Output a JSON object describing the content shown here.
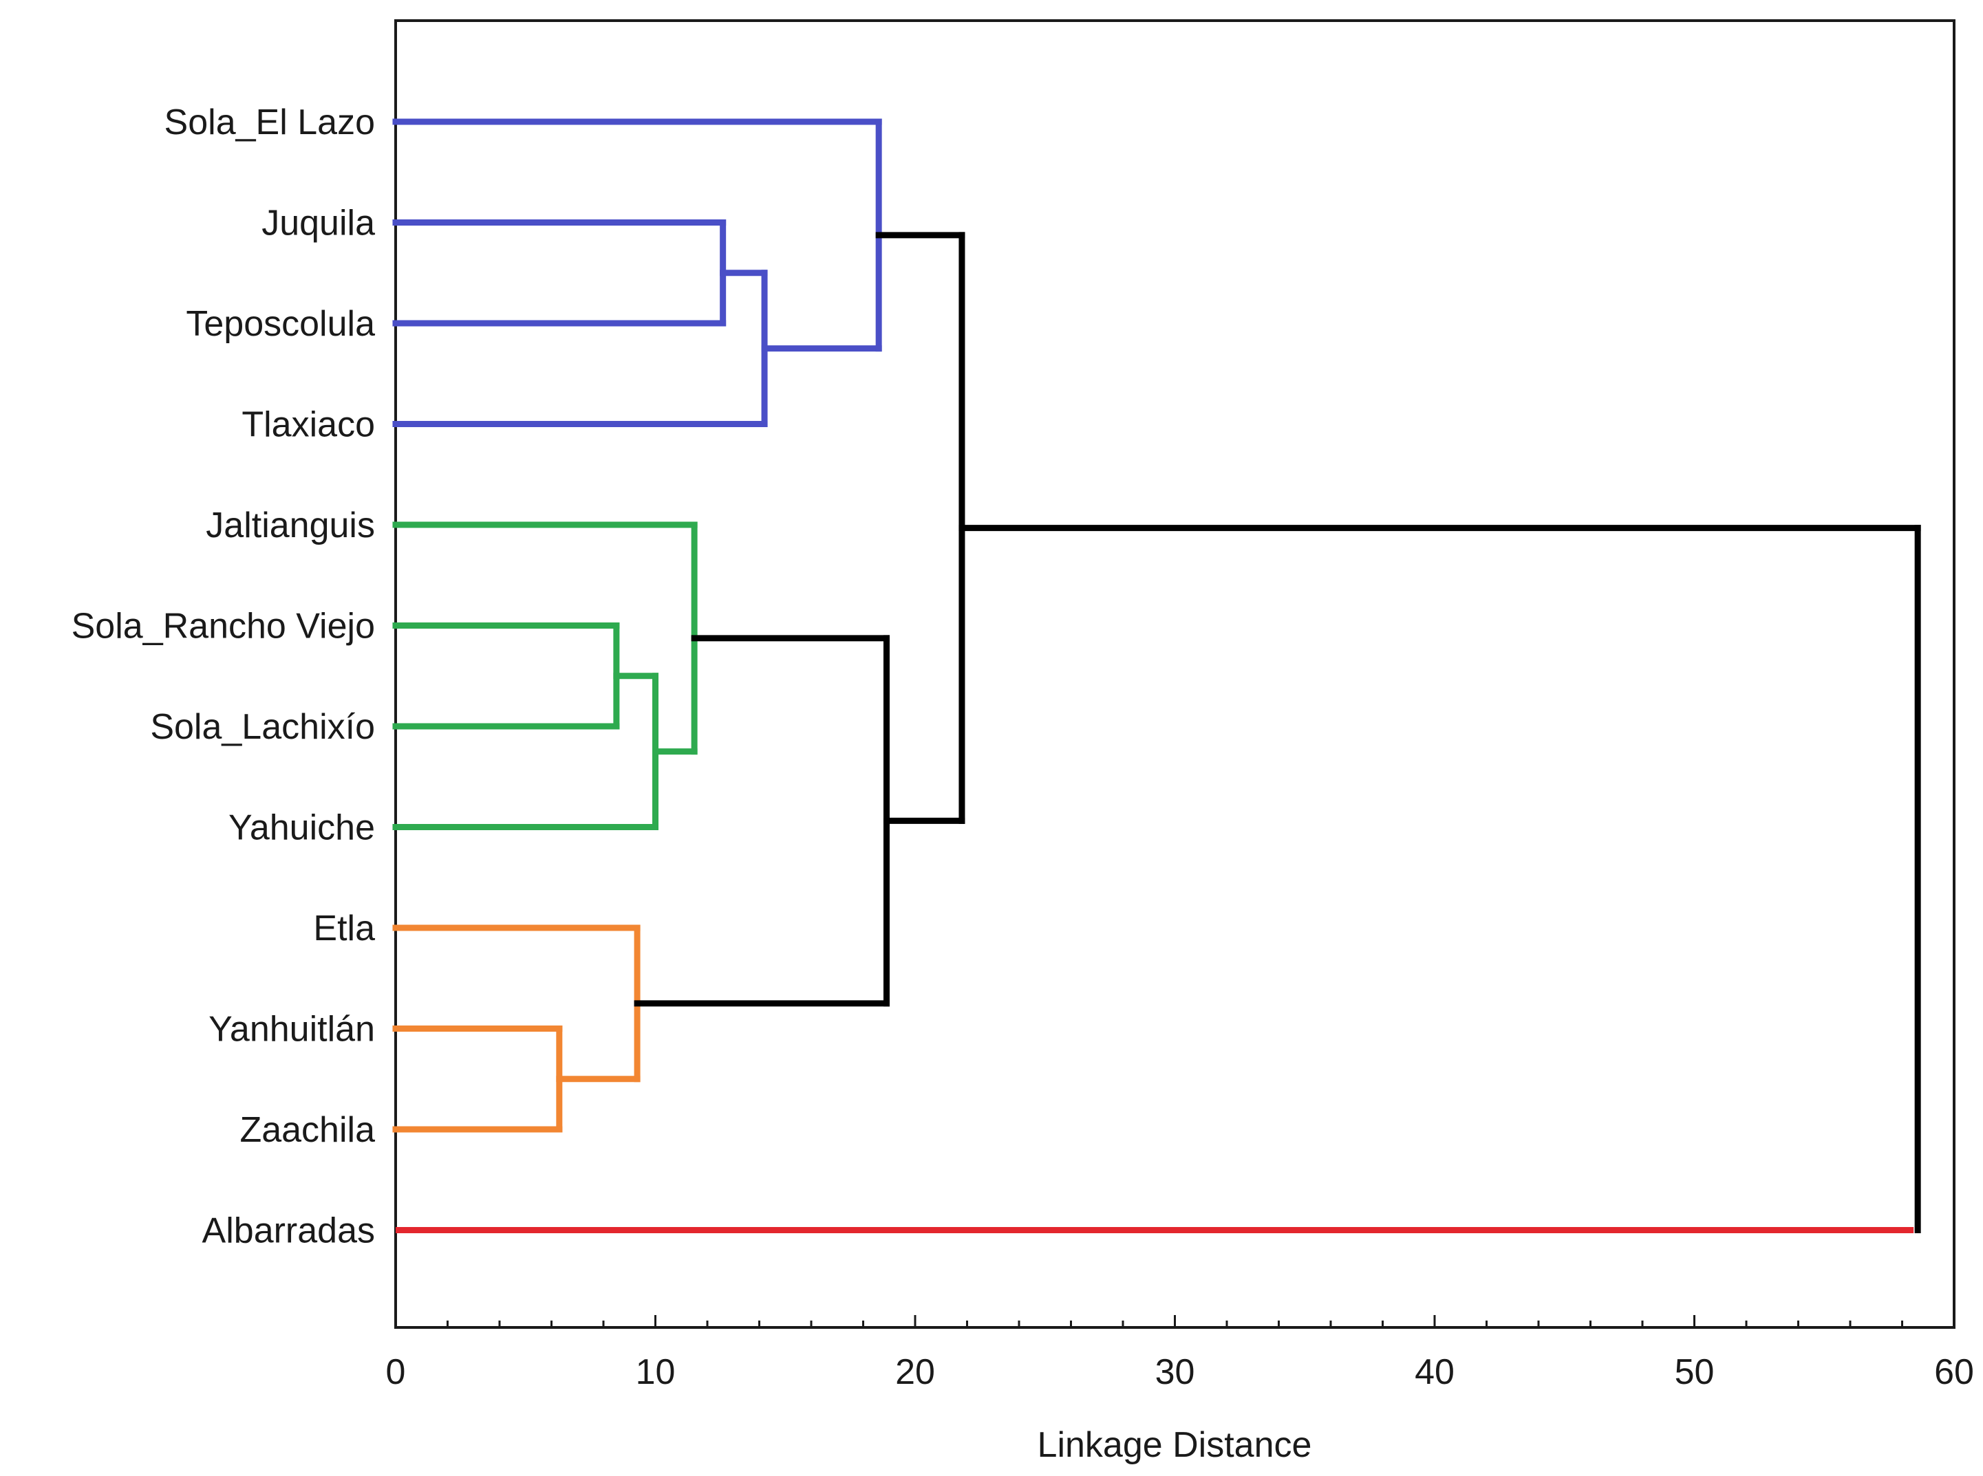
{
  "chart_data": {
    "type": "dendrogram",
    "orientation": "horizontal",
    "xlabel": "Linkage Distance",
    "xlim": [
      0,
      60
    ],
    "xticks": [
      0,
      10,
      20,
      30,
      40,
      50,
      60
    ],
    "xtick_labels": [
      "0",
      "10",
      "20",
      "30",
      "40",
      "50",
      "60"
    ],
    "minor_tick_step": 2,
    "grid": false,
    "leaves": [
      "Sola_El Lazo",
      "Juquila",
      "Teposcolula",
      "Tlaxiaco",
      "Jaltianguis",
      "Sola_Rancho Viejo",
      "Sola_Lachixío",
      "Yahuiche",
      "Etla",
      "Yanhuitlán",
      "Zaachila",
      "Albarradas"
    ],
    "merges": [
      {
        "id": "m1",
        "left": "Yanhuitlán",
        "right": "Zaachila",
        "distance": 6.3,
        "color": "orange"
      },
      {
        "id": "m2",
        "left": "Sola_Rancho Viejo",
        "right": "Sola_Lachixío",
        "distance": 8.5,
        "color": "green"
      },
      {
        "id": "m3",
        "left": "Etla",
        "right": "m1",
        "distance": 9.3,
        "color": "orange"
      },
      {
        "id": "m4",
        "left": "m2",
        "right": "Yahuiche",
        "distance": 10.0,
        "color": "green"
      },
      {
        "id": "m5",
        "left": "Jaltianguis",
        "right": "m4",
        "distance": 11.5,
        "color": "green"
      },
      {
        "id": "m6",
        "left": "Juquila",
        "right": "Teposcolula",
        "distance": 12.6,
        "color": "blue"
      },
      {
        "id": "m7",
        "left": "m6",
        "right": "Tlaxiaco",
        "distance": 14.2,
        "color": "blue"
      },
      {
        "id": "m8",
        "left": "Sola_El Lazo",
        "right": "m7",
        "distance": 18.6,
        "color": "blue"
      },
      {
        "id": "m9",
        "left": "m5",
        "right": "m3",
        "distance": 18.9,
        "color": "black"
      },
      {
        "id": "m10",
        "left": "m8",
        "right": "m9",
        "distance": 21.8,
        "color": "black"
      },
      {
        "id": "m11",
        "left": "m10",
        "right": "Albarradas",
        "distance": 58.6,
        "color": "black"
      }
    ],
    "leaf_colors": {
      "Sola_El Lazo": "blue",
      "Juquila": "blue",
      "Teposcolula": "blue",
      "Tlaxiaco": "blue",
      "Jaltianguis": "green",
      "Sola_Rancho Viejo": "green",
      "Sola_Lachixío": "green",
      "Yahuiche": "green",
      "Etla": "orange",
      "Yanhuitlán": "orange",
      "Zaachila": "orange",
      "Albarradas": "red"
    },
    "colors": {
      "blue": "#4a4fc7",
      "green": "#2eaa4f",
      "orange": "#f28632",
      "red": "#e3262e",
      "black": "#000000",
      "axis": "#1a1a1a"
    }
  }
}
